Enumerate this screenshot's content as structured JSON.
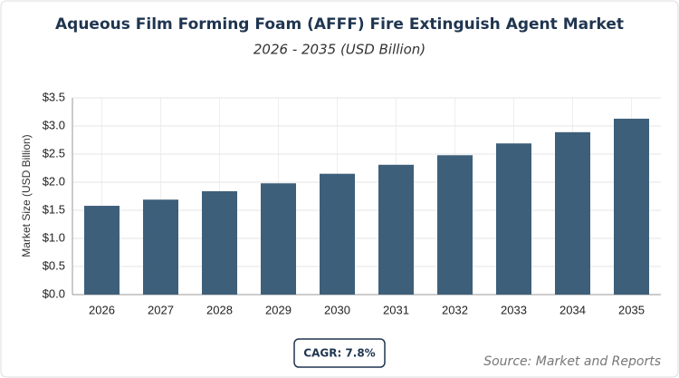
{
  "chart_data": {
    "type": "bar",
    "title": "Aqueous Film Forming Foam (AFFF) Fire Extinguish Agent Market",
    "subtitle": "2026 - 2035 (USD Billion)",
    "y_label": "Market Size (USD Billion)",
    "categories": [
      "2026",
      "2027",
      "2028",
      "2029",
      "2030",
      "2031",
      "2032",
      "2033",
      "2034",
      "2035"
    ],
    "values": [
      1.58,
      1.69,
      1.84,
      1.98,
      2.15,
      2.31,
      2.48,
      2.69,
      2.89,
      3.13
    ],
    "color": "#3d5f7a",
    "ylim": [
      0,
      3.5
    ],
    "yticks": [
      {
        "value": 0,
        "label": "$0.0"
      },
      {
        "value": 0.5,
        "label": "$0.5"
      },
      {
        "value": 1,
        "label": "$1.0"
      },
      {
        "value": 1.5,
        "label": "$1.5"
      },
      {
        "value": 2,
        "label": "$2.0"
      },
      {
        "value": 2.5,
        "label": "$2.5"
      },
      {
        "value": 3,
        "label": "$3.0"
      },
      {
        "value": 3.5,
        "label": "$3.5"
      }
    ],
    "grid": true,
    "annotation": "CAGR: 7.8%",
    "source": "Source: Market and Reports"
  }
}
